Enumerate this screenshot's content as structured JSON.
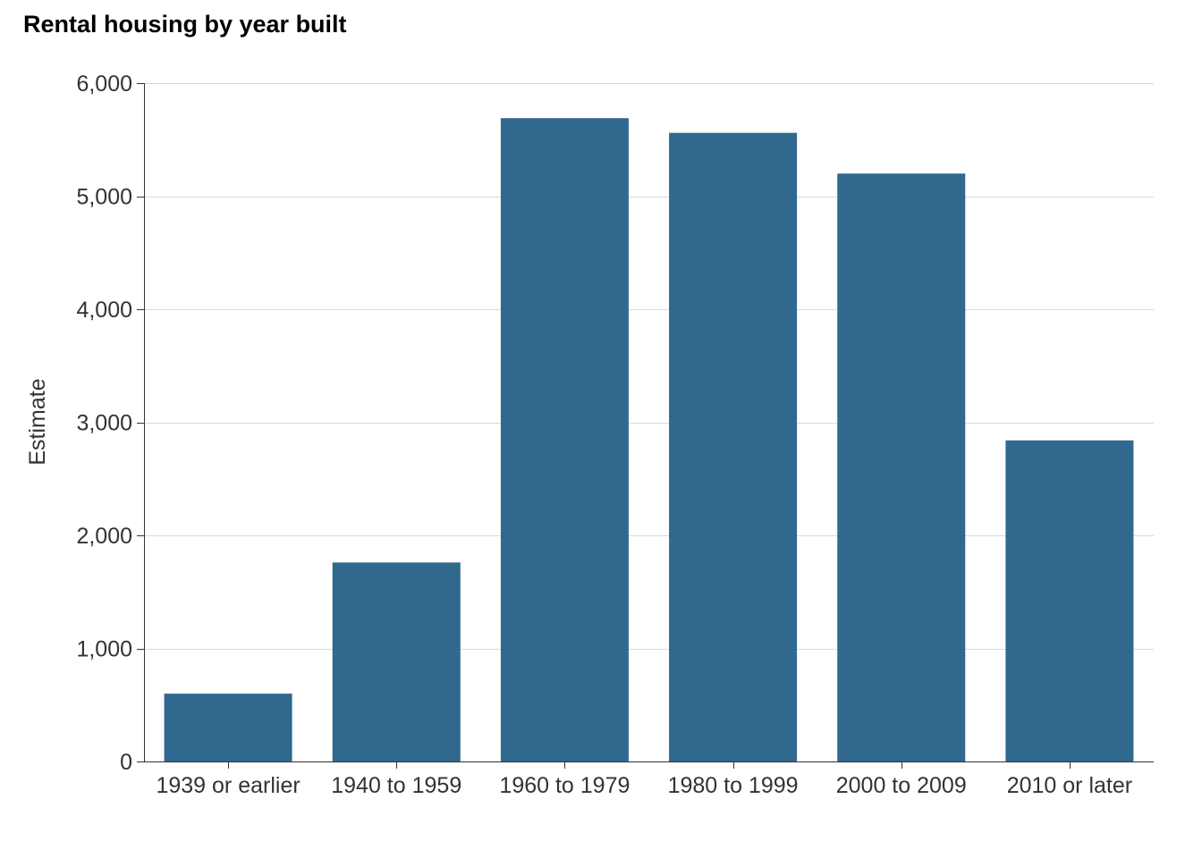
{
  "chart_data": {
    "type": "bar",
    "title": "Rental housing by year built",
    "xlabel": "",
    "ylabel": "Estimate",
    "categories": [
      "1939 or earlier",
      "1940 to 1959",
      "1960 to 1979",
      "1980 to 1999",
      "2000 to 2009",
      "2010 or later"
    ],
    "values": [
      600,
      1760,
      5690,
      5560,
      5200,
      2840
    ],
    "ylim": [
      0,
      6000
    ],
    "yticks": [
      0,
      1000,
      2000,
      3000,
      4000,
      5000,
      6000
    ],
    "ytick_labels": [
      "0",
      "1,000",
      "2,000",
      "3,000",
      "4,000",
      "5,000",
      "6,000"
    ],
    "grid": true,
    "legend": "none",
    "colors": {
      "bar": "#31688e",
      "grid": "#d9d9d9",
      "axis": "#333333",
      "text": "#333333",
      "title": "#000000"
    }
  }
}
